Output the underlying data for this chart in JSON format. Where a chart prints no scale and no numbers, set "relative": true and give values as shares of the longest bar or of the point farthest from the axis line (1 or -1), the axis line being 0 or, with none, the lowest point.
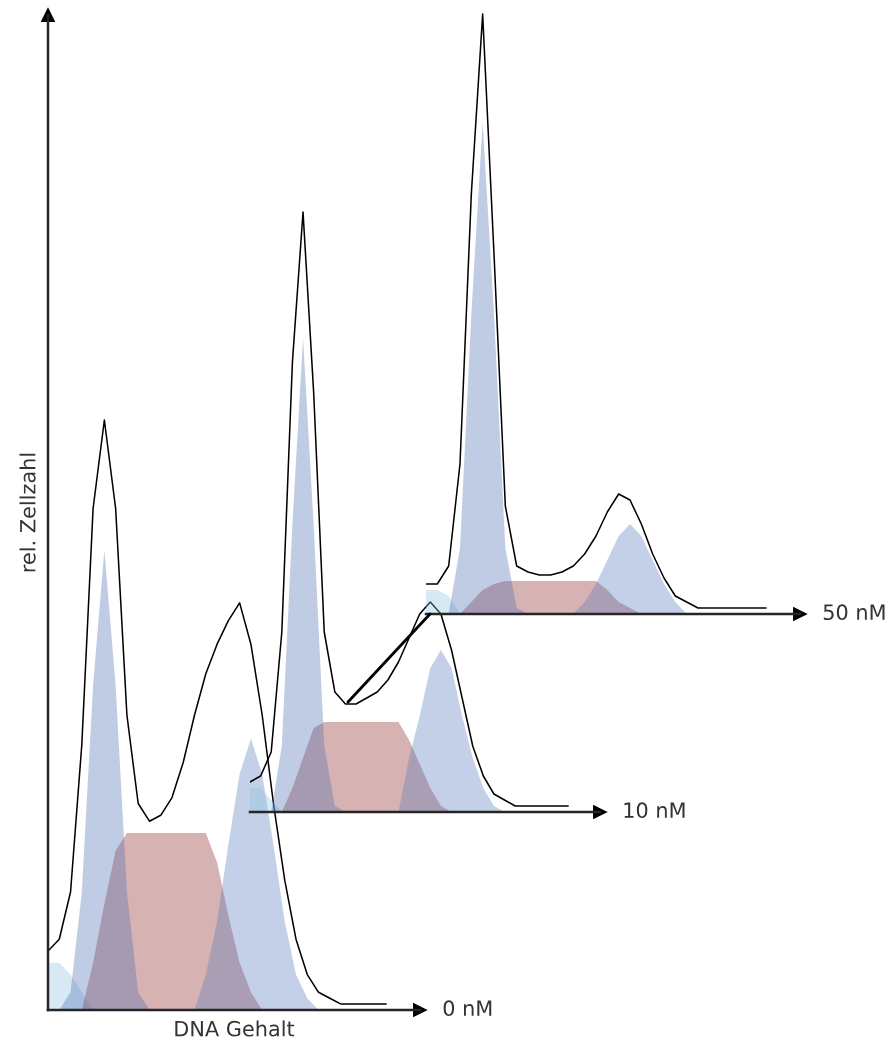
{
  "chart_data": [
    {
      "type": "area",
      "relative": true,
      "xlabel": "DNA Gehalt",
      "ylabel": "rel. Zellzahl",
      "annotations": [
        "0 nM"
      ],
      "categories": [
        null,
        null,
        null,
        null,
        null,
        null,
        null,
        null,
        null,
        null,
        null,
        null,
        null,
        null,
        null,
        null,
        null,
        null,
        null,
        null,
        null,
        null,
        null,
        null,
        null,
        null,
        null,
        null,
        null,
        null,
        null
      ],
      "series": [
        {
          "color": "#8cc4e0",
          "values": [
            0.08,
            0.08,
            0.06,
            0.03,
            0,
            0,
            0,
            0,
            0,
            0,
            0,
            0,
            0,
            0,
            0,
            0,
            0,
            0,
            0,
            0,
            0,
            0,
            0,
            0,
            0,
            0,
            0,
            0,
            0,
            0,
            0
          ]
        },
        {
          "color": "#8b2323",
          "values": [
            0,
            0,
            0,
            0,
            0.08,
            0.18,
            0.27,
            0.3,
            0.3,
            0.3,
            0.3,
            0.3,
            0.3,
            0.3,
            0.3,
            0.25,
            0.16,
            0.08,
            0.03,
            0,
            0,
            0,
            0,
            0,
            0,
            0,
            0,
            0,
            0,
            0,
            0
          ]
        },
        {
          "color": "#4a6cb3",
          "values": [
            0,
            0,
            0.03,
            0.2,
            0.55,
            0.78,
            0.55,
            0.2,
            0.03,
            0,
            0,
            0,
            0,
            0,
            0,
            0,
            0,
            0,
            0,
            0,
            0,
            0,
            0,
            0,
            0,
            0,
            0,
            0,
            0,
            0,
            0
          ]
        },
        {
          "color": "#5577bb",
          "values": [
            0,
            0,
            0,
            0,
            0,
            0,
            0,
            0,
            0,
            0,
            0,
            0,
            0,
            0,
            0.06,
            0.15,
            0.28,
            0.4,
            0.46,
            0.4,
            0.28,
            0.15,
            0.06,
            0.02,
            0,
            0,
            0,
            0,
            0,
            0,
            0
          ]
        },
        {
          "type": "line",
          "color": "#000000",
          "values": [
            0.1,
            0.12,
            0.2,
            0.45,
            0.85,
            1.0,
            0.85,
            0.5,
            0.35,
            0.32,
            0.33,
            0.36,
            0.42,
            0.5,
            0.57,
            0.62,
            0.66,
            0.69,
            0.62,
            0.5,
            0.35,
            0.22,
            0.12,
            0.06,
            0.03,
            0.02,
            0.01,
            0.01,
            0.01,
            0.01,
            0.01
          ]
        }
      ]
    },
    {
      "type": "area",
      "relative": true,
      "annotations": [
        "10 nM"
      ],
      "categories": [
        null,
        null,
        null,
        null,
        null,
        null,
        null,
        null,
        null,
        null,
        null,
        null,
        null,
        null,
        null,
        null,
        null,
        null,
        null,
        null,
        null,
        null,
        null,
        null,
        null,
        null,
        null,
        null,
        null,
        null,
        null
      ],
      "series": [
        {
          "color": "#8cc4e0",
          "values": [
            0.04,
            0.04,
            0.02,
            0,
            0,
            0,
            0,
            0,
            0,
            0,
            0,
            0,
            0,
            0,
            0,
            0,
            0,
            0,
            0,
            0,
            0,
            0,
            0,
            0,
            0,
            0,
            0,
            0,
            0,
            0,
            0
          ]
        },
        {
          "color": "#8b2323",
          "values": [
            0,
            0,
            0,
            0,
            0.04,
            0.09,
            0.14,
            0.15,
            0.15,
            0.15,
            0.15,
            0.15,
            0.15,
            0.15,
            0.15,
            0.12,
            0.08,
            0.04,
            0.01,
            0,
            0,
            0,
            0,
            0,
            0,
            0,
            0,
            0,
            0,
            0,
            0
          ]
        },
        {
          "color": "#4a6cb3",
          "values": [
            0,
            0,
            0,
            0.11,
            0.48,
            0.79,
            0.48,
            0.11,
            0.01,
            0,
            0,
            0,
            0,
            0,
            0,
            0,
            0,
            0,
            0,
            0,
            0,
            0,
            0,
            0,
            0,
            0,
            0,
            0,
            0,
            0,
            0
          ]
        },
        {
          "color": "#5577bb",
          "values": [
            0,
            0,
            0,
            0,
            0,
            0,
            0,
            0,
            0,
            0,
            0,
            0,
            0,
            0,
            0,
            0.09,
            0.16,
            0.24,
            0.27,
            0.24,
            0.16,
            0.09,
            0.04,
            0.01,
            0,
            0,
            0,
            0,
            0,
            0,
            0
          ]
        },
        {
          "type": "line",
          "color": "#000000",
          "values": [
            0.05,
            0.06,
            0.1,
            0.3,
            0.75,
            1.0,
            0.7,
            0.3,
            0.2,
            0.18,
            0.18,
            0.19,
            0.2,
            0.22,
            0.25,
            0.29,
            0.33,
            0.35,
            0.33,
            0.27,
            0.19,
            0.11,
            0.06,
            0.03,
            0.02,
            0.01,
            0.01,
            0.01,
            0.01,
            0.01,
            0.01
          ]
        }
      ]
    },
    {
      "type": "area",
      "relative": true,
      "annotations": [
        "50 nM"
      ],
      "categories": [
        null,
        null,
        null,
        null,
        null,
        null,
        null,
        null,
        null,
        null,
        null,
        null,
        null,
        null,
        null,
        null,
        null,
        null,
        null,
        null,
        null,
        null,
        null,
        null,
        null,
        null,
        null,
        null,
        null,
        null,
        null
      ],
      "series": [
        {
          "color": "#8cc4e0",
          "values": [
            0.04,
            0.04,
            0.03,
            0,
            0,
            0,
            0,
            0,
            0,
            0,
            0,
            0,
            0,
            0,
            0,
            0,
            0,
            0,
            0,
            0,
            0,
            0,
            0,
            0,
            0,
            0,
            0,
            0,
            0,
            0,
            0
          ]
        },
        {
          "color": "#8b2323",
          "values": [
            0,
            0,
            0,
            0,
            0.02,
            0.04,
            0.05,
            0.055,
            0.055,
            0.055,
            0.055,
            0.055,
            0.055,
            0.055,
            0.055,
            0.055,
            0.04,
            0.02,
            0.01,
            0,
            0,
            0,
            0,
            0,
            0,
            0,
            0,
            0,
            0,
            0,
            0
          ]
        },
        {
          "color": "#4a6cb3",
          "values": [
            0,
            0,
            0,
            0.11,
            0.5,
            0.82,
            0.5,
            0.11,
            0.01,
            0,
            0,
            0,
            0,
            0,
            0,
            0,
            0,
            0,
            0,
            0,
            0,
            0,
            0,
            0,
            0,
            0,
            0,
            0,
            0,
            0,
            0
          ]
        },
        {
          "color": "#5577bb",
          "values": [
            0,
            0,
            0,
            0,
            0,
            0,
            0,
            0,
            0,
            0,
            0,
            0,
            0,
            0,
            0.02,
            0.05,
            0.09,
            0.13,
            0.15,
            0.13,
            0.09,
            0.05,
            0.02,
            0,
            0,
            0,
            0,
            0,
            0,
            0,
            0
          ]
        },
        {
          "type": "line",
          "color": "#000000",
          "values": [
            0.05,
            0.05,
            0.08,
            0.25,
            0.7,
            1.0,
            0.6,
            0.18,
            0.08,
            0.07,
            0.065,
            0.065,
            0.07,
            0.08,
            0.1,
            0.13,
            0.17,
            0.2,
            0.19,
            0.15,
            0.1,
            0.06,
            0.03,
            0.02,
            0.01,
            0.01,
            0.01,
            0.01,
            0.01,
            0.01,
            0.01
          ]
        }
      ]
    }
  ]
}
